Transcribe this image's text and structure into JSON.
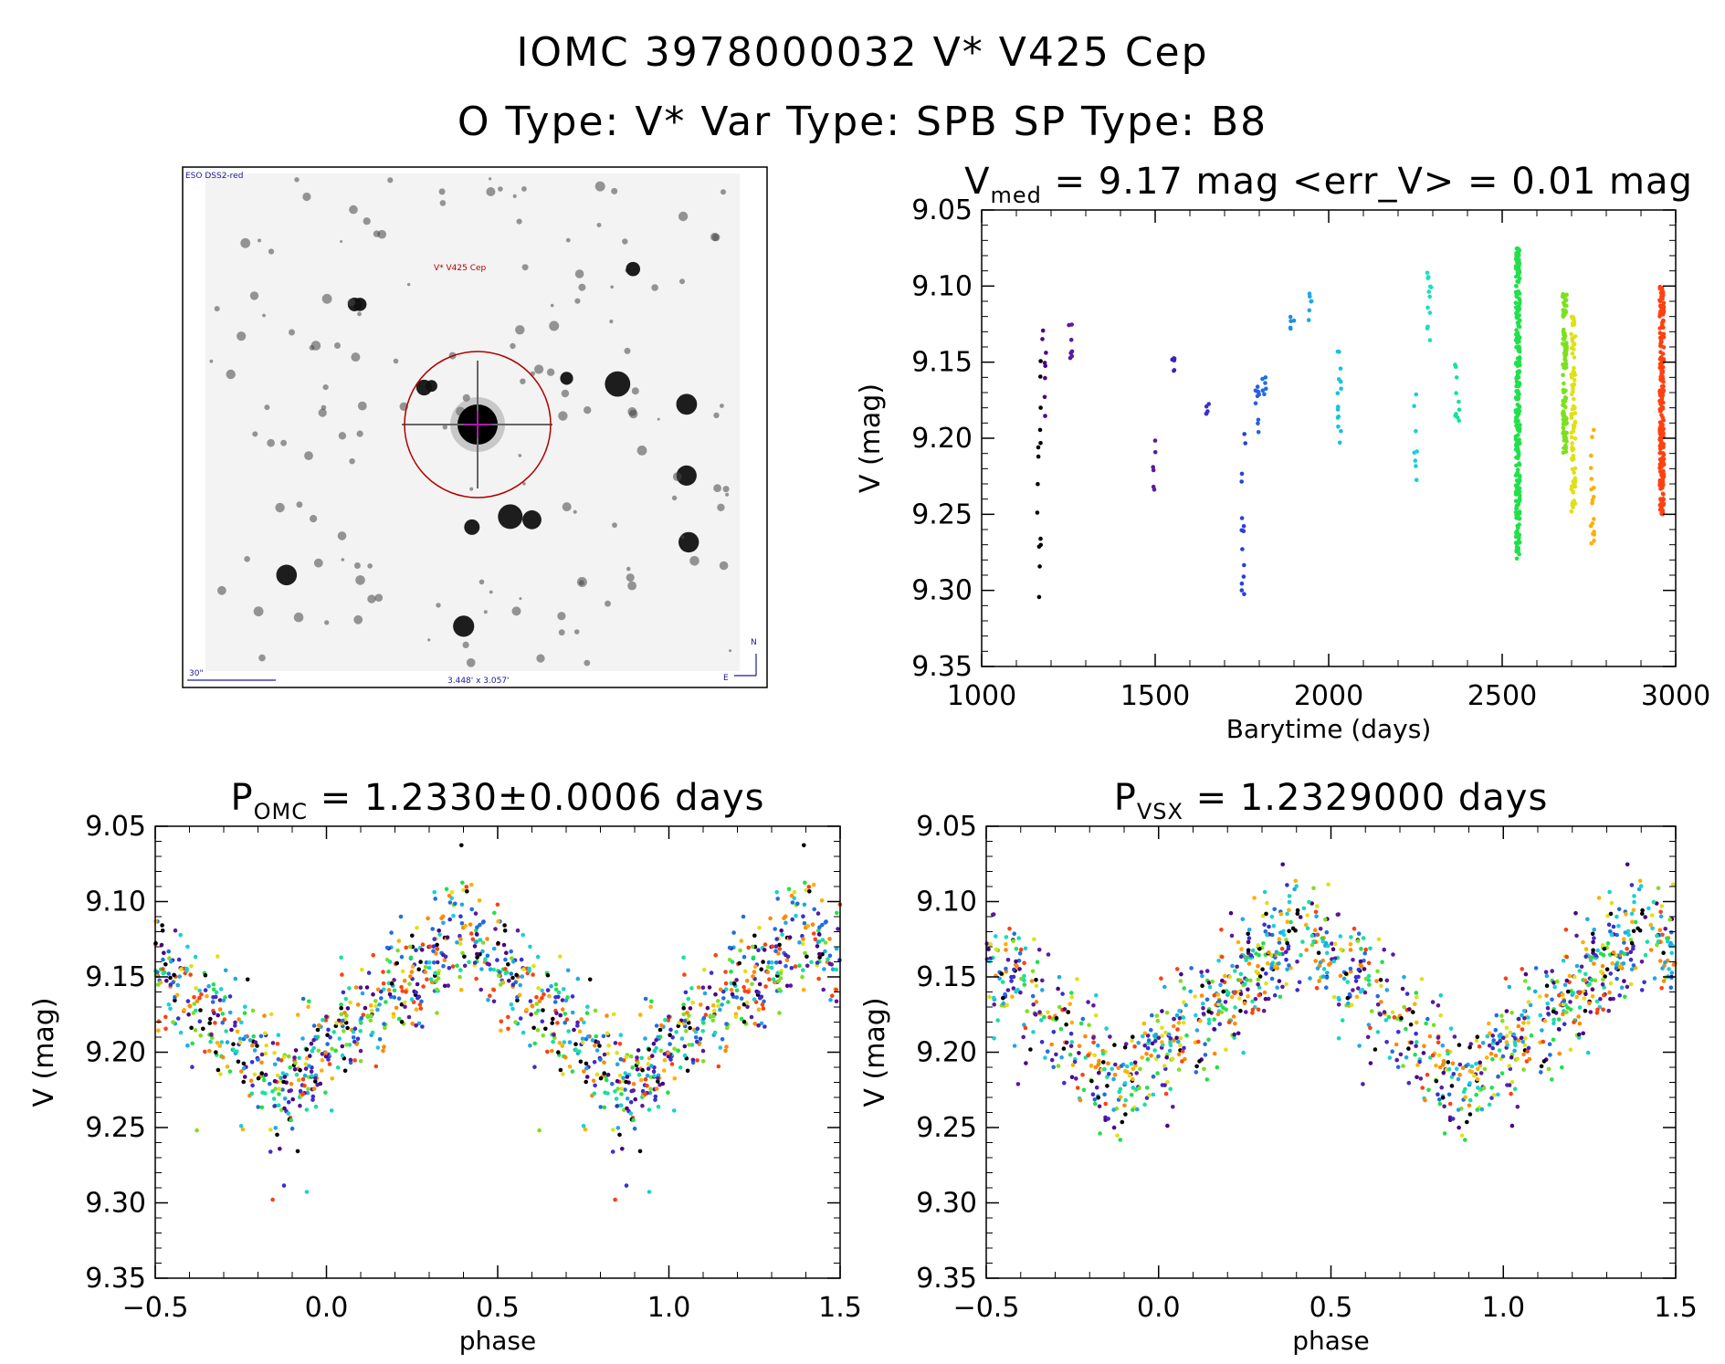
{
  "header": {
    "line1": "IOMC 3978000032   V* V425 Cep",
    "line2": "O Type: V*  Var Type: SPB  SP Type: B8"
  },
  "finder": {
    "survey_label": "ESO DSS2-red",
    "target_label": "V* V425 Cep",
    "scale_label": "30\"",
    "fov_label": "3.448' x 3.057'",
    "compass_n": "N",
    "compass_e": "E"
  },
  "colors": {
    "palette": [
      "#000000",
      "#4b0082",
      "#5a1aa0",
      "#3a2fd0",
      "#1f6fe0",
      "#1fa8e8",
      "#18d0d8",
      "#16e0a0",
      "#22e04a",
      "#7ce020",
      "#e0e018",
      "#ffb000",
      "#ff8800",
      "#ff4010"
    ],
    "finder_circle": "#b00000",
    "finder_cross": "#c000c0",
    "finder_text_blue": "#1a1a9a"
  },
  "chart_data": [
    {
      "id": "lightcurve",
      "type": "scatter",
      "title_main": "V",
      "title_sub": "med",
      "title_rest": " = 9.17 mag <err_V> = 0.01 mag",
      "xlabel": "Barytime (days)",
      "ylabel": "V (mag)",
      "xlim": [
        1000,
        3000
      ],
      "ylim": [
        9.35,
        9.05
      ],
      "y_inverted": true,
      "xticks": [
        1000,
        1500,
        2000,
        2500,
        3000
      ],
      "xtick_labels": [
        "1000",
        "1500",
        "2000",
        "2500",
        "3000"
      ],
      "yticks": [
        9.05,
        9.1,
        9.15,
        9.2,
        9.25,
        9.3,
        9.35
      ],
      "ytick_labels": [
        "9.05",
        "9.10",
        "9.15",
        "9.20",
        "9.25",
        "9.30",
        "9.35"
      ],
      "groups": [
        {
          "x": 1165,
          "ymin": 9.14,
          "ymax": 9.31,
          "n": 14,
          "color": "#000000"
        },
        {
          "x": 1180,
          "ymin": 9.12,
          "ymax": 9.23,
          "n": 8,
          "color": "#4b0082"
        },
        {
          "x": 1255,
          "ymin": 9.125,
          "ymax": 9.15,
          "n": 8,
          "color": "#5a1aa0"
        },
        {
          "x": 1500,
          "ymin": 9.2,
          "ymax": 9.24,
          "n": 6,
          "color": "#5a1aa0"
        },
        {
          "x": 1555,
          "ymin": 9.145,
          "ymax": 9.16,
          "n": 6,
          "color": "#4020c0"
        },
        {
          "x": 1650,
          "ymin": 9.175,
          "ymax": 9.19,
          "n": 5,
          "color": "#3a2fd0"
        },
        {
          "x": 1755,
          "ymin": 9.19,
          "ymax": 9.31,
          "n": 14,
          "color": "#2a40d8"
        },
        {
          "x": 1795,
          "ymin": 9.165,
          "ymax": 9.2,
          "n": 10,
          "color": "#2a60e0"
        },
        {
          "x": 1815,
          "ymin": 9.16,
          "ymax": 9.175,
          "n": 6,
          "color": "#1f6fe0"
        },
        {
          "x": 1895,
          "ymin": 9.12,
          "ymax": 9.13,
          "n": 5,
          "color": "#1f90e0"
        },
        {
          "x": 1945,
          "ymin": 9.1,
          "ymax": 9.125,
          "n": 6,
          "color": "#1fa8e8"
        },
        {
          "x": 2030,
          "ymin": 9.14,
          "ymax": 9.21,
          "n": 14,
          "color": "#18c0e0"
        },
        {
          "x": 2250,
          "ymin": 9.17,
          "ymax": 9.23,
          "n": 8,
          "color": "#18d0d8"
        },
        {
          "x": 2290,
          "ymin": 9.085,
          "ymax": 9.14,
          "n": 12,
          "color": "#16e0c0"
        },
        {
          "x": 2370,
          "ymin": 9.15,
          "ymax": 9.19,
          "n": 10,
          "color": "#16e0a0"
        },
        {
          "x": 2545,
          "ymin": 9.075,
          "ymax": 9.28,
          "n": 260,
          "color": "#22e04a"
        },
        {
          "x": 2680,
          "ymin": 9.105,
          "ymax": 9.21,
          "n": 110,
          "color": "#7ce020"
        },
        {
          "x": 2705,
          "ymin": 9.12,
          "ymax": 9.25,
          "n": 90,
          "color": "#e0e018"
        },
        {
          "x": 2760,
          "ymin": 9.19,
          "ymax": 9.28,
          "n": 18,
          "color": "#ffb000"
        },
        {
          "x": 2960,
          "ymin": 9.1,
          "ymax": 9.25,
          "n": 230,
          "color": "#ff4010"
        }
      ]
    },
    {
      "id": "phase_omc",
      "type": "scatter",
      "title_main": "P",
      "title_sub": "OMC",
      "title_rest": " = 1.2330±0.0006 days",
      "xlabel": "phase",
      "ylabel": "V (mag)",
      "xlim": [
        -0.5,
        1.5
      ],
      "ylim": [
        9.35,
        9.05
      ],
      "y_inverted": true,
      "xticks": [
        -0.5,
        0.0,
        0.5,
        1.0,
        1.5
      ],
      "xtick_labels": [
        "−0.5",
        "0.0",
        "0.5",
        "1.0",
        "1.5"
      ],
      "yticks": [
        9.05,
        9.1,
        9.15,
        9.2,
        9.25,
        9.3,
        9.35
      ],
      "ytick_labels": [
        "9.05",
        "9.10",
        "9.15",
        "9.20",
        "9.25",
        "9.30",
        "9.35"
      ],
      "min_phase": -0.13,
      "max_phase": 0.4,
      "mean_mag": 9.17,
      "amplitude": 0.052,
      "n_points": 640
    },
    {
      "id": "phase_vsx",
      "type": "scatter",
      "title_main": "P",
      "title_sub": "VSX",
      "title_rest": " = 1.2329000 days",
      "xlabel": "phase",
      "ylabel": "V (mag)",
      "xlim": [
        -0.5,
        1.5
      ],
      "ylim": [
        9.35,
        9.05
      ],
      "y_inverted": true,
      "xticks": [
        -0.5,
        0.0,
        0.5,
        1.0,
        1.5
      ],
      "xtick_labels": [
        "−0.5",
        "0.0",
        "0.5",
        "1.0",
        "1.5"
      ],
      "yticks": [
        9.05,
        9.1,
        9.15,
        9.2,
        9.25,
        9.3,
        9.35
      ],
      "ytick_labels": [
        "9.05",
        "9.10",
        "9.15",
        "9.20",
        "9.25",
        "9.30",
        "9.35"
      ],
      "min_phase": -0.12,
      "max_phase": 0.42,
      "mean_mag": 9.17,
      "amplitude": 0.052,
      "n_points": 640
    }
  ]
}
